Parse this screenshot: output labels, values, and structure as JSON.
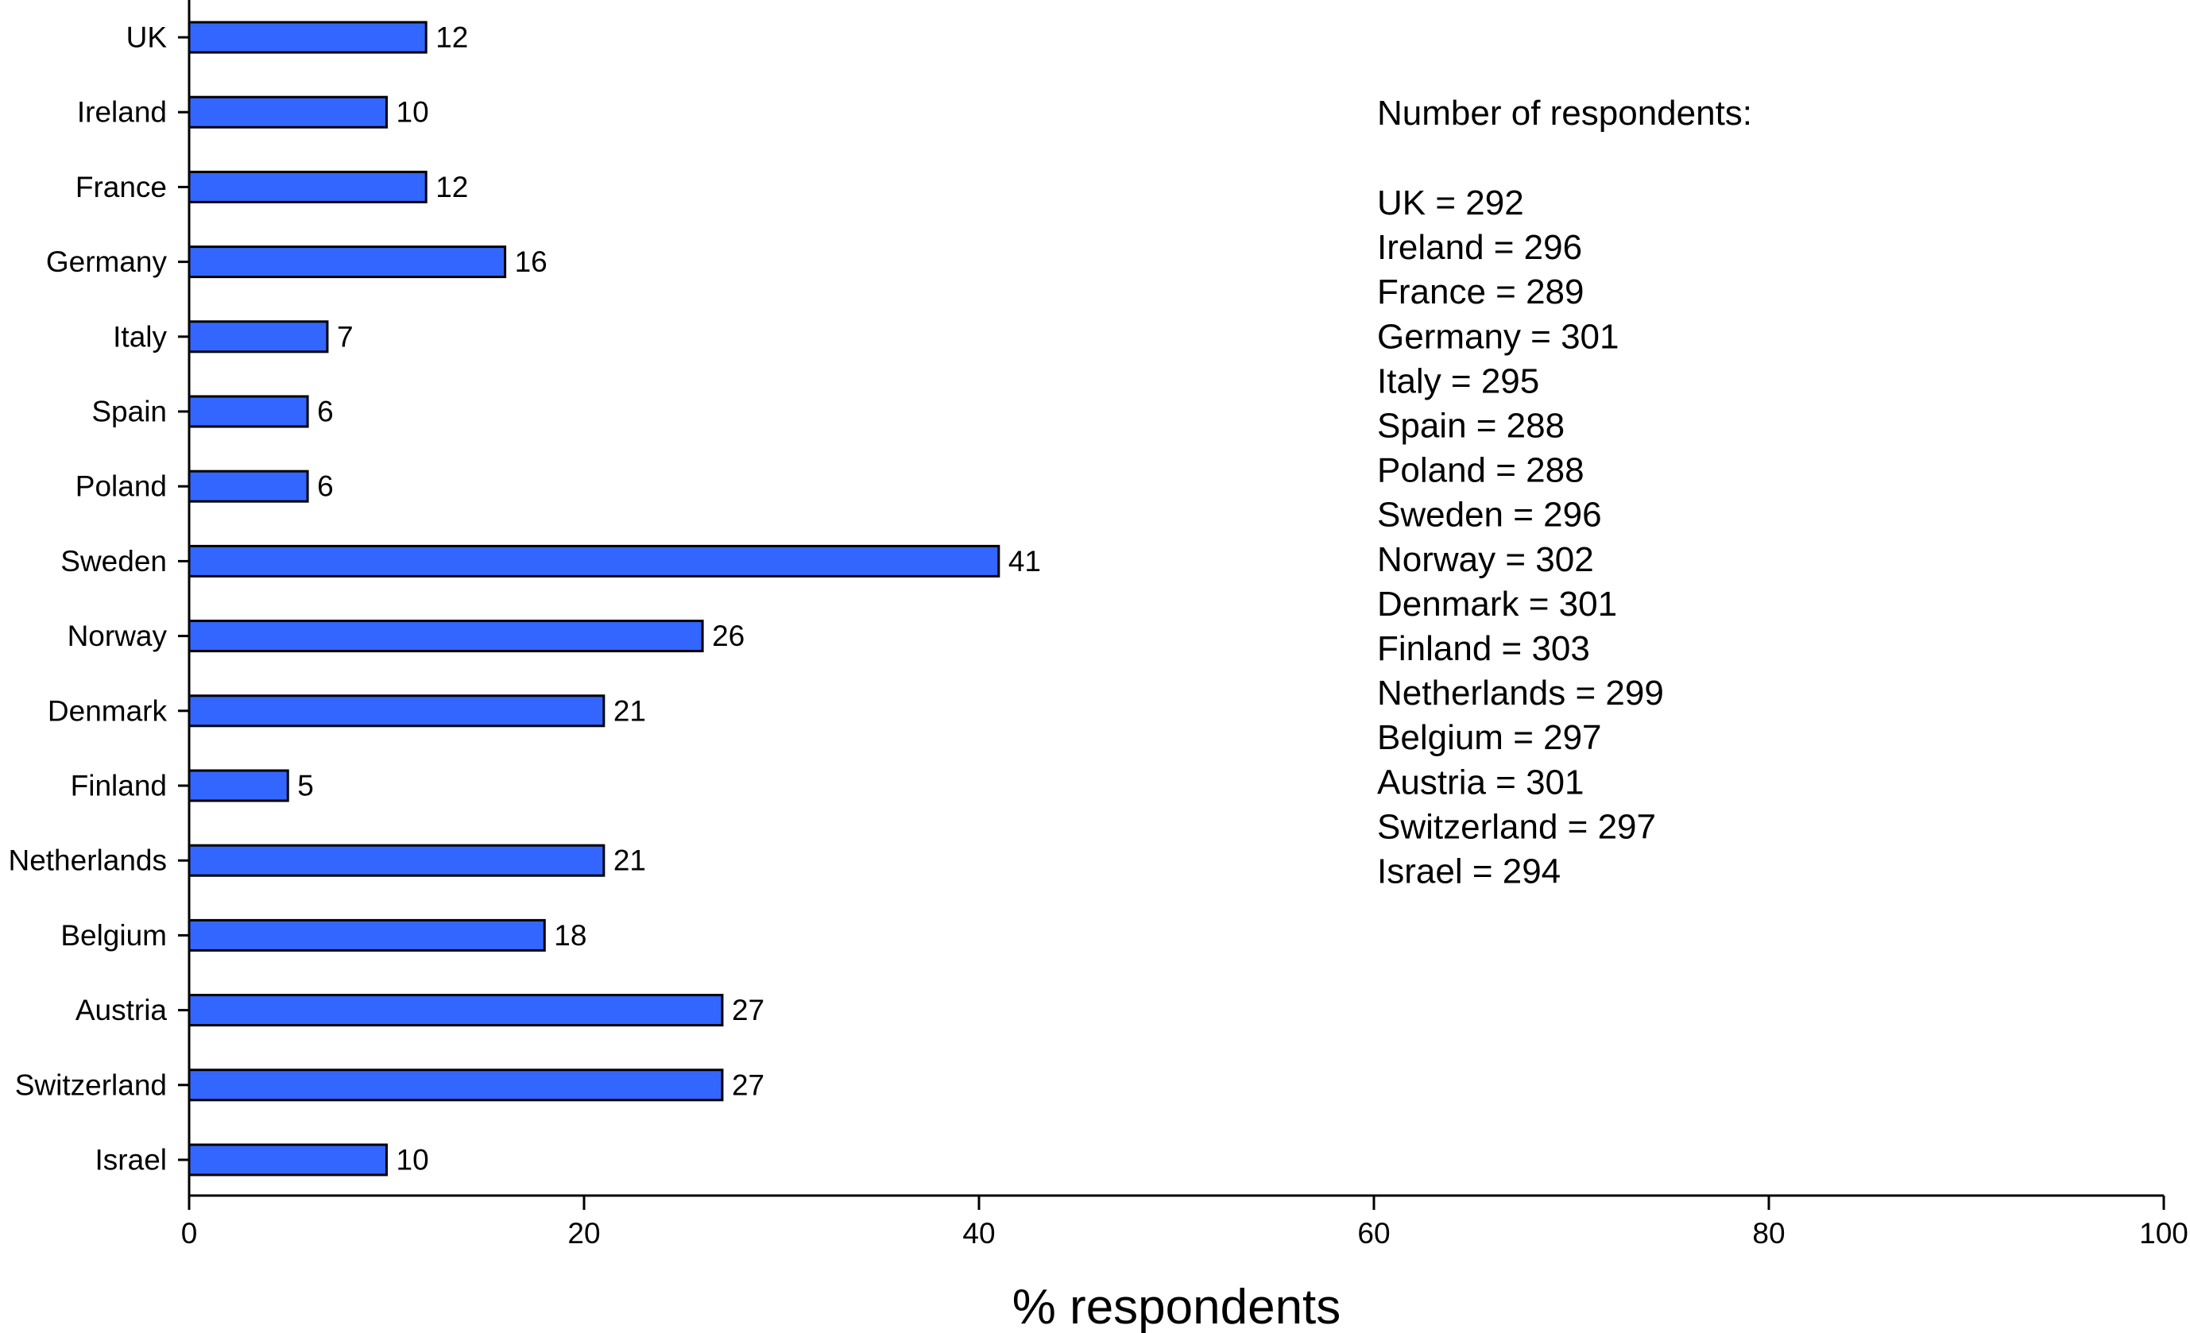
{
  "chart_data": {
    "type": "bar",
    "orientation": "horizontal",
    "categories": [
      "UK",
      "Ireland",
      "France",
      "Germany",
      "Italy",
      "Spain",
      "Poland",
      "Sweden",
      "Norway",
      "Denmark",
      "Finland",
      "Netherlands",
      "Belgium",
      "Austria",
      "Switzerland",
      "Israel"
    ],
    "values": [
      12,
      10,
      12,
      16,
      7,
      6,
      6,
      41,
      26,
      21,
      5,
      21,
      18,
      27,
      27,
      10
    ],
    "xlabel": "% respondents",
    "xlim": [
      0,
      100
    ],
    "xticks": [
      0,
      20,
      40,
      60,
      80,
      100
    ],
    "bar_color": "#3366ff",
    "bar_edge_color": "#000000",
    "grid": false,
    "data_labels": true,
    "annotation": {
      "heading": "Number of respondents:",
      "lines": [
        "UK = 292",
        "Ireland = 296",
        "France = 289",
        "Germany = 301",
        "Italy = 295",
        "Spain = 288",
        "Poland = 288",
        "Sweden = 296",
        "Norway = 302",
        "Denmark = 301",
        "Finland = 303",
        "Netherlands = 299",
        "Belgium = 297",
        "Austria = 301",
        "Switzerland = 297",
        "Israel = 294"
      ]
    }
  }
}
